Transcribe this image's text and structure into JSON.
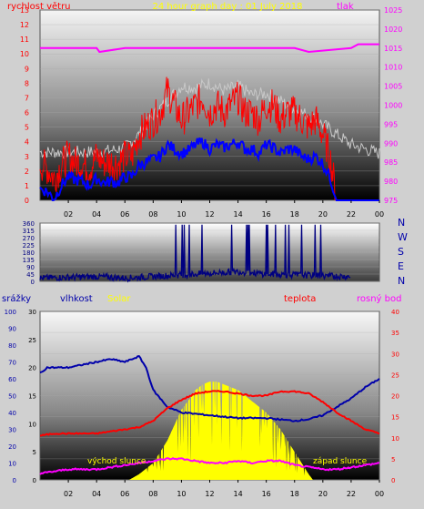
{
  "title": "24 hour graph day : 01 July 2018",
  "labels": {
    "wind": "rychlost větru",
    "pressure": "tlak",
    "dir_letters": [
      "N",
      "W",
      "S",
      "E",
      "N"
    ],
    "rain": "srážky",
    "humidity": "vlhkost",
    "solar": "Solar",
    "temp": "teplota",
    "dew": "rosný bod",
    "sunrise": "východ slunce",
    "sunset": "západ slunce"
  },
  "colors": {
    "wind_gust": "#ff0000",
    "wind_avg": "#0000ff",
    "wind_max": "#c8c8c8",
    "pressure": "#ff00ff",
    "direction": "#000080",
    "humidity": "#0000aa",
    "solar": "#ffff00",
    "temp": "#ff0000",
    "dew": "#ff00ff",
    "title": "#ffff00",
    "label_red": "#ff0000",
    "label_magenta": "#ff00ff",
    "label_blue": "#0000aa"
  },
  "x_ticks": [
    "02",
    "04",
    "06",
    "08",
    "10",
    "12",
    "14",
    "16",
    "18",
    "20",
    "22",
    "00"
  ],
  "chart_data": [
    {
      "type": "line",
      "title": "24 hour graph day : 01 July 2018",
      "x_range": [
        0,
        24
      ],
      "y_left": {
        "label": "rychlost větru",
        "range": [
          0,
          13
        ],
        "ticks": [
          0,
          1,
          2,
          3,
          4,
          5,
          6,
          7,
          8,
          9,
          10,
          11,
          12,
          13
        ]
      },
      "y_right": {
        "label": "tlak",
        "range": [
          975,
          1025
        ],
        "ticks": [
          975,
          980,
          985,
          990,
          995,
          1000,
          1005,
          1010,
          1015,
          1020,
          1025
        ]
      },
      "series": [
        {
          "name": "rychlost větru",
          "axis": "left",
          "x": [
            0,
            0.5,
            1,
            1.5,
            2,
            2.5,
            3,
            3.5,
            4,
            4.5,
            5,
            5.5,
            6,
            6.5,
            7,
            7.5,
            8,
            8.5,
            9,
            9.5,
            10,
            10.5,
            11,
            11.5,
            12,
            12.5,
            13,
            13.5,
            14,
            14.5,
            15,
            15.5,
            16,
            16.5,
            17,
            17.5,
            18,
            18.5,
            19,
            19.5,
            20,
            20.5,
            21,
            21.5,
            22,
            22.5,
            23,
            23.5,
            24
          ],
          "y": [
            2.5,
            2.2,
            1.5,
            2.4,
            3.0,
            2.6,
            2.5,
            2.2,
            3.0,
            2.6,
            2.6,
            2.5,
            3.0,
            3.0,
            4.5,
            5.0,
            5.5,
            6.0,
            7.5,
            6.5,
            5.5,
            6.0,
            6.5,
            7.0,
            6.0,
            6.5,
            6.0,
            6.5,
            7.0,
            6.0,
            6.0,
            5.5,
            6.5,
            6.5,
            5.5,
            6.0,
            6.0,
            5.5,
            5.0,
            5.5,
            4.5,
            3.0,
            0,
            0,
            0,
            0,
            0,
            0,
            0
          ]
        },
        {
          "name": "avg wind",
          "axis": "left",
          "x": [
            0,
            0.5,
            1,
            1.5,
            2,
            2.5,
            3,
            3.5,
            4,
            4.5,
            5,
            5.5,
            6,
            6.5,
            7,
            7.5,
            8,
            8.5,
            9,
            9.5,
            10,
            10.5,
            11,
            11.5,
            12,
            12.5,
            13,
            13.5,
            14,
            14.5,
            15,
            15.5,
            16,
            16.5,
            17,
            17.5,
            18,
            18.5,
            19,
            19.5,
            20,
            20.5,
            21,
            21.5,
            22,
            22.5,
            23,
            23.5,
            24
          ],
          "y": [
            0.8,
            0.6,
            0.1,
            1.0,
            1.6,
            1.4,
            1.3,
            1.0,
            1.5,
            1.2,
            1.3,
            1.2,
            1.6,
            1.6,
            2.4,
            2.6,
            2.8,
            3.0,
            3.8,
            3.5,
            3.2,
            3.4,
            3.8,
            4.0,
            3.5,
            3.8,
            3.6,
            3.8,
            4.0,
            3.5,
            3.5,
            3.2,
            3.8,
            3.6,
            3.2,
            3.5,
            3.5,
            3.0,
            2.8,
            3.0,
            2.5,
            1.6,
            0,
            0,
            0,
            0,
            0,
            0,
            0
          ]
        },
        {
          "name": "max wind",
          "axis": "left",
          "x": [
            0,
            1,
            2,
            3,
            4,
            5,
            6,
            7,
            8,
            9,
            10,
            11,
            12,
            13,
            14,
            15,
            16,
            17,
            18,
            19,
            20,
            21,
            22,
            23,
            24
          ],
          "y": [
            3.3,
            3.3,
            3.3,
            3.3,
            3.3,
            3.4,
            3.6,
            4.5,
            5.8,
            6.8,
            7.8,
            7.7,
            8.0,
            7.5,
            7.8,
            7.2,
            7.3,
            6.8,
            6.2,
            5.8,
            5.2,
            4.5,
            3.8,
            3.5,
            3.2
          ]
        },
        {
          "name": "tlak",
          "axis": "right",
          "x": [
            0,
            4,
            4.2,
            6,
            10,
            13,
            15,
            16,
            18,
            19,
            22,
            22.5,
            24
          ],
          "y": [
            1015,
            1015,
            1014,
            1015,
            1015,
            1015,
            1015,
            1015,
            1015,
            1014,
            1015,
            1016,
            1016
          ]
        }
      ]
    },
    {
      "type": "line",
      "title": "",
      "x_range": [
        0,
        24
      ],
      "y_left": {
        "range": [
          0,
          360
        ],
        "ticks": [
          0,
          45,
          90,
          135,
          180,
          225,
          270,
          315,
          360
        ]
      },
      "series": [
        {
          "name": "wind direction",
          "x": [
            0,
            2,
            4,
            6,
            8,
            10,
            12,
            14,
            16,
            18,
            20,
            22,
            24
          ],
          "y": [
            20,
            25,
            30,
            20,
            30,
            40,
            50,
            60,
            45,
            40,
            35,
            30,
            30
          ]
        }
      ]
    },
    {
      "type": "area",
      "title": "",
      "x_range": [
        0,
        24
      ],
      "y_rain": {
        "label": "srážky",
        "range": [
          0,
          100
        ],
        "ticks": [
          0,
          10,
          20,
          30,
          40,
          50,
          60,
          70,
          80,
          90,
          100
        ]
      },
      "y_humidity": {
        "label": "vlhkost",
        "range": [
          0,
          30
        ],
        "ticks": [
          0,
          5,
          10,
          15,
          20,
          25,
          30
        ]
      },
      "y_right": {
        "label": "teplota",
        "range": [
          0,
          40
        ],
        "ticks": [
          0,
          5,
          10,
          15,
          20,
          25,
          30,
          35,
          40
        ]
      },
      "series": [
        {
          "name": "vlhkost",
          "axis": "humidity",
          "x": [
            0,
            0.5,
            2,
            4,
            5,
            6,
            7,
            7.5,
            8,
            9,
            10,
            12,
            14,
            16,
            18,
            19,
            20,
            21,
            22,
            23,
            24
          ],
          "y": [
            19,
            20,
            20,
            21,
            21.5,
            21,
            22,
            20,
            16,
            13,
            12,
            11.5,
            11,
            11,
            10.5,
            10.8,
            11.5,
            13,
            14.5,
            16.5,
            18
          ]
        },
        {
          "name": "Solar",
          "axis": "humidity",
          "x": [
            0,
            6.3,
            7,
            8,
            9,
            10,
            10.6,
            11,
            11.5,
            12,
            12.5,
            13,
            14,
            15,
            16,
            17,
            18,
            18.5,
            19,
            19.3,
            24
          ],
          "y": [
            0,
            0,
            1,
            3,
            7,
            12.5,
            14.5,
            16,
            17,
            17.5,
            17.5,
            17,
            16,
            14,
            12,
            9,
            5,
            3,
            1,
            0,
            0
          ]
        },
        {
          "name": "teplota",
          "axis": "right",
          "x": [
            0,
            1,
            2,
            3,
            4,
            5,
            6,
            7,
            8,
            9,
            10,
            11,
            12,
            13,
            14,
            15,
            16,
            17,
            18,
            19,
            20,
            21,
            22,
            23,
            24
          ],
          "y": [
            10.5,
            11,
            11,
            11,
            11,
            11.5,
            12,
            12.5,
            14,
            17,
            19,
            20.5,
            21,
            21,
            20.5,
            20,
            20,
            21,
            21,
            20.5,
            18.5,
            16,
            14,
            12,
            11
          ]
        },
        {
          "name": "rosný bod",
          "axis": "right",
          "x": [
            0,
            1,
            2,
            3,
            4,
            5,
            6,
            7,
            8,
            9,
            10,
            11,
            12,
            13,
            14,
            15,
            16,
            17,
            18,
            19,
            20,
            21,
            22,
            23,
            24
          ],
          "y": [
            1.5,
            2,
            2.5,
            2.5,
            2.5,
            3,
            3.5,
            4,
            4.5,
            5,
            5,
            4.5,
            4,
            4,
            4.5,
            4,
            4.5,
            4.5,
            3.5,
            3,
            2.5,
            2.5,
            3,
            3.5,
            4
          ]
        }
      ],
      "annotations": [
        "východ slunce",
        "západ slunce"
      ]
    }
  ]
}
